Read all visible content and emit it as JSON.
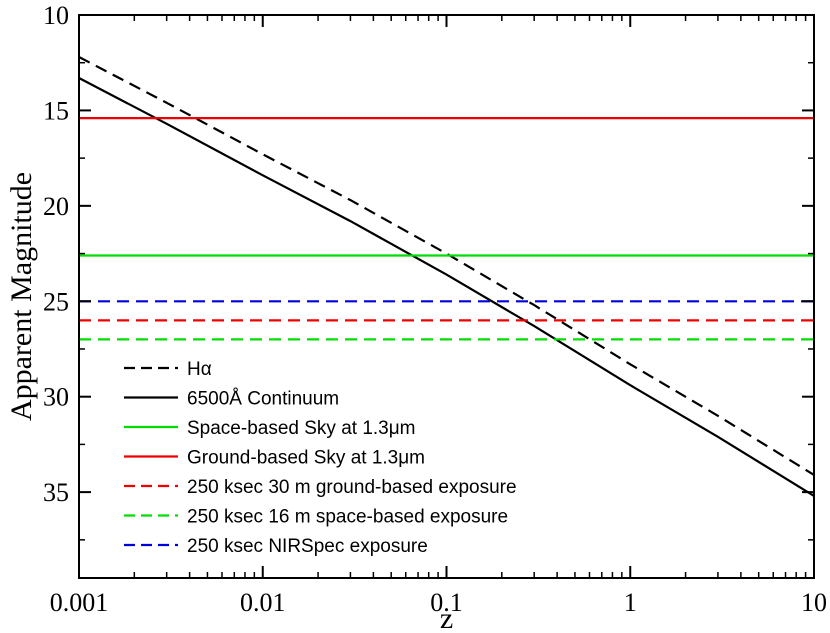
{
  "chart_data": {
    "type": "line",
    "title": "",
    "xlabel": "z",
    "ylabel": "Apparent Magnitude",
    "xscale": "log",
    "xlim": [
      0.001,
      10
    ],
    "ylim": [
      39.5,
      10
    ],
    "y_inverted": true,
    "x_ticks": [
      0.001,
      0.01,
      0.1,
      1,
      10
    ],
    "x_tick_labels": [
      "0.001",
      "0.01",
      "0.1",
      "1",
      "10"
    ],
    "y_ticks": [
      10,
      15,
      20,
      25,
      30,
      35
    ],
    "y_tick_labels": [
      "10",
      "15",
      "20",
      "25",
      "30",
      "35"
    ],
    "legend_position": "bottom-left",
    "series": [
      {
        "name": "Hα",
        "color": "#000000",
        "dash": "dashed",
        "x": [
          0.001,
          0.003,
          0.01,
          0.03,
          0.1,
          0.3,
          1,
          3,
          10
        ],
        "y": [
          12.2,
          14.6,
          17.3,
          19.7,
          22.5,
          25.2,
          28.3,
          31.0,
          34.1
        ]
      },
      {
        "name": "6500Å Continuum",
        "color": "#000000",
        "dash": "solid",
        "x": [
          0.001,
          0.003,
          0.01,
          0.03,
          0.1,
          0.3,
          1,
          3,
          10
        ],
        "y": [
          13.3,
          15.7,
          18.4,
          20.8,
          23.6,
          26.3,
          29.4,
          32.1,
          35.2
        ]
      },
      {
        "name": "Space-based Sky at 1.3μm",
        "color": "#00dd00",
        "dash": "solid",
        "x": [
          0.001,
          10
        ],
        "y": [
          22.6,
          22.6
        ]
      },
      {
        "name": "Ground-based Sky at 1.3μm",
        "color": "#ee0000",
        "dash": "solid",
        "x": [
          0.001,
          10
        ],
        "y": [
          15.4,
          15.4
        ]
      },
      {
        "name": "250 ksec 30 m ground-based exposure",
        "color": "#ee0000",
        "dash": "dashed",
        "x": [
          0.001,
          10
        ],
        "y": [
          26,
          26
        ]
      },
      {
        "name": "250 ksec 16 m space-based exposure",
        "color": "#00dd00",
        "dash": "dashed",
        "x": [
          0.001,
          10
        ],
        "y": [
          27,
          27
        ]
      },
      {
        "name": "250 ksec NIRSpec exposure",
        "color": "#0000dd",
        "dash": "dashed",
        "x": [
          0.001,
          10
        ],
        "y": [
          25,
          25
        ]
      }
    ]
  }
}
